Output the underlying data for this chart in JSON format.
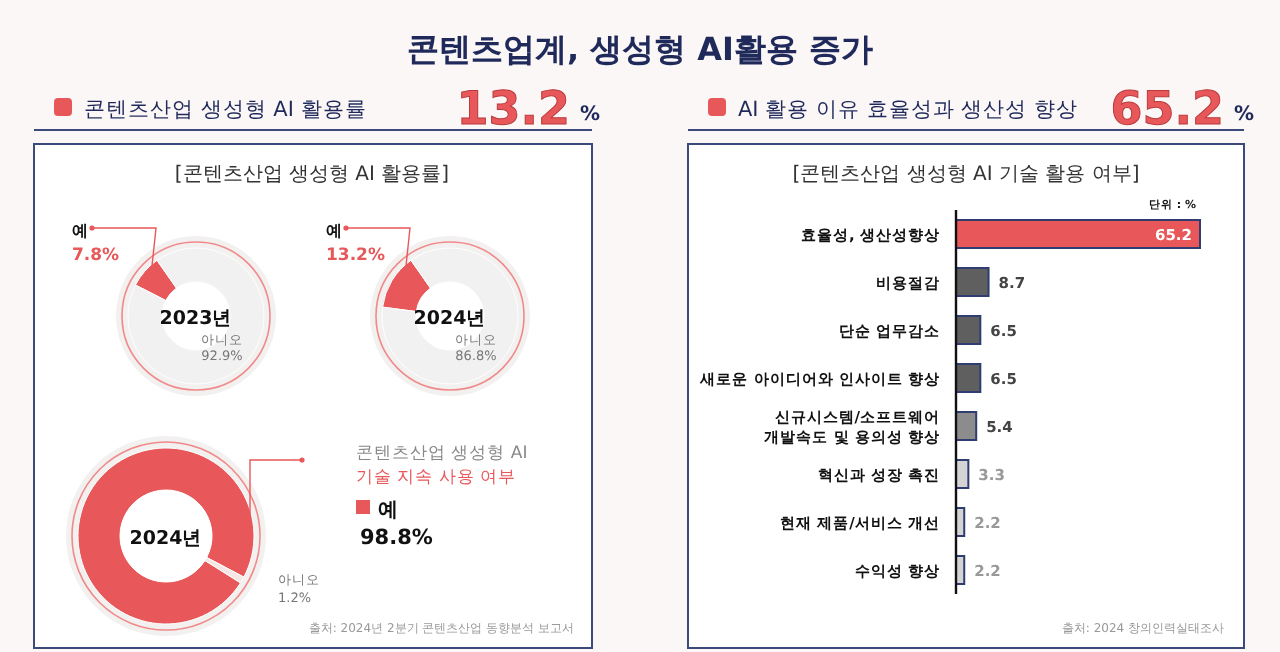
{
  "chart_data": [
    {
      "type": "donut",
      "title": "[콘텐츠산업 생성형 AI 활용률]",
      "xlabel": "2023년",
      "categories": [
        "예",
        "아니오"
      ],
      "values": [
        7.8,
        92.9
      ],
      "value_labels": [
        "7.8%",
        "92.9%"
      ],
      "colors": [
        "#e8585a",
        "#f1f1f1"
      ],
      "annotations": [
        "콘텐츠업계, 생성형 AI활용 증가",
        "콘텐츠산업 생성형 AI 활용률",
        "13.2",
        "%"
      ]
    },
    {
      "type": "donut",
      "xlabel": "2024년",
      "categories": [
        "예",
        "아니오"
      ],
      "values": [
        13.2,
        86.8
      ],
      "value_labels": [
        "13.2%",
        "86.8%"
      ],
      "colors": [
        "#e8585a",
        "#f1f1f1"
      ]
    },
    {
      "type": "donut",
      "title": "콘텐츠산업 생성형 AI",
      "subtitle": "기술 지속 사용 여부",
      "xlabel": "2024년",
      "categories": [
        "예",
        "아니오"
      ],
      "values": [
        98.8,
        1.2
      ],
      "value_labels": [
        "98.8%",
        "1.2%"
      ],
      "colors": [
        "#e8585a",
        "#f6e6e4"
      ],
      "annotations": [
        "출처: 2024년 2분기 콘텐츠산업 동향분석 보고서"
      ]
    },
    {
      "type": "bar",
      "orientation": "horizontal",
      "title": "[콘텐츠산업 생성형 AI 기술 활용 여부]",
      "data_labels": true,
      "categories": [
        "효율성, 생산성향상",
        "비용절감",
        "단순 업무감소",
        "새로운 아이디어와 인사이트 향상",
        "신규시스템/소프트웨어 개발속도 및 용의성 향상",
        "혁신과 성장 촉진",
        "현재 제품/서비스 개선",
        "수익성 향상"
      ],
      "values": [
        65.2,
        8.7,
        6.5,
        6.5,
        5.4,
        3.3,
        2.2,
        2.2
      ],
      "colors": [
        "#e8585a",
        "#5f5f5f",
        "#5f5f5f",
        "#5f5f5f",
        "#8c8c8c",
        "#d4d4d4",
        "#d4d4d4",
        "#d4d4d4"
      ],
      "annotations": [
        "AI 활용 이유 효율성과 생산성 향상",
        "65.2",
        "%",
        "단위 : %",
        "출처: 2024 창의인력실태조사"
      ]
    }
  ]
}
